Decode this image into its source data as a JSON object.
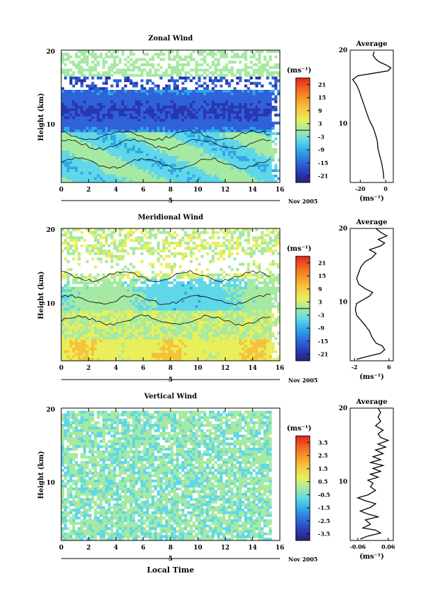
{
  "chart_data": [
    {
      "type": "heatmap",
      "title": "Zonal Wind",
      "ylabel": "Height (km)",
      "xlim": [
        0,
        16
      ],
      "ylim": [
        2,
        20
      ],
      "x_ticks": [
        "0",
        "2",
        "4",
        "6",
        "8",
        "10",
        "12",
        "14",
        "16"
      ],
      "y_ticks": [
        "20",
        "10"
      ],
      "date_axis": {
        "day": "5",
        "month_year": "Nov 2005"
      },
      "colorbar": {
        "unit": "(ms⁻¹)",
        "ticks": [
          "21",
          "15",
          "9",
          "3",
          "-3",
          "-9",
          "-15",
          "-21"
        ],
        "range": [
          -24,
          24
        ]
      },
      "profile": {
        "title": "Average",
        "xlabel": "(ms⁻¹)",
        "x_ticks": [
          "-20",
          "0"
        ],
        "xlim": [
          -28,
          6
        ],
        "y_ticks": [
          "20",
          "10"
        ],
        "points": [
          [
            -1.5,
            2.5
          ],
          [
            -2,
            3.5
          ],
          [
            -3,
            4.5
          ],
          [
            -4.5,
            5.5
          ],
          [
            -6,
            6.5
          ],
          [
            -6.5,
            7.5
          ],
          [
            -8,
            8.5
          ],
          [
            -10,
            9.5
          ],
          [
            -13,
            10.5
          ],
          [
            -15,
            11.5
          ],
          [
            -17,
            12.5
          ],
          [
            -19,
            13.5
          ],
          [
            -21,
            14.5
          ],
          [
            -23,
            15.3
          ],
          [
            -26,
            16.0
          ],
          [
            -22,
            16.5
          ],
          [
            -8,
            16.9
          ],
          [
            2,
            17.2
          ],
          [
            4,
            17.6
          ],
          [
            0,
            18.0
          ],
          [
            -5,
            18.4
          ],
          [
            -8,
            18.8
          ],
          [
            -10,
            19.3
          ],
          [
            -9,
            19.8
          ]
        ]
      }
    },
    {
      "type": "heatmap",
      "title": "Meridional Wind",
      "ylabel": "Height (km)",
      "xlim": [
        0,
        16
      ],
      "ylim": [
        2,
        20
      ],
      "x_ticks": [
        "0",
        "2",
        "4",
        "6",
        "8",
        "10",
        "12",
        "14",
        "16"
      ],
      "y_ticks": [
        "20",
        "10"
      ],
      "date_axis": {
        "day": "5",
        "month_year": "Nov 2005"
      },
      "colorbar": {
        "unit": "(ms⁻¹)",
        "ticks": [
          "21",
          "15",
          "9",
          "3",
          "-3",
          "-9",
          "-15",
          "-21"
        ],
        "range": [
          -24,
          24
        ]
      },
      "profile": {
        "title": "Average",
        "xlabel": "(ms⁻¹)",
        "x_ticks": [
          "-2",
          "6"
        ],
        "xlim": [
          -3,
          7
        ],
        "y_ticks": [
          "20",
          "10"
        ],
        "points": [
          [
            -1.5,
            2.2
          ],
          [
            1,
            2.6
          ],
          [
            4,
            3.0
          ],
          [
            5,
            3.5
          ],
          [
            4.5,
            4.0
          ],
          [
            3,
            4.4
          ],
          [
            2.5,
            4.8
          ],
          [
            2,
            5.3
          ],
          [
            1.5,
            6.0
          ],
          [
            0.5,
            6.8
          ],
          [
            -0.5,
            7.5
          ],
          [
            -1.5,
            8.2
          ],
          [
            -1.8,
            9.0
          ],
          [
            -1.5,
            9.8
          ],
          [
            0,
            10.3
          ],
          [
            1.5,
            10.8
          ],
          [
            2.2,
            11.3
          ],
          [
            0.5,
            11.8
          ],
          [
            -1,
            12.4
          ],
          [
            -1.5,
            13.2
          ],
          [
            -1,
            14.0
          ],
          [
            -0.5,
            14.8
          ],
          [
            0.5,
            15.5
          ],
          [
            2,
            16.0
          ],
          [
            3,
            16.6
          ],
          [
            1.5,
            17.1
          ],
          [
            4,
            17.6
          ],
          [
            5,
            18.0
          ],
          [
            3.5,
            18.5
          ],
          [
            5.5,
            19.0
          ],
          [
            4,
            19.5
          ],
          [
            3,
            20.0
          ]
        ]
      }
    },
    {
      "type": "heatmap",
      "title": "Vertical Wind",
      "ylabel": "Height (km)",
      "xlabel": "Local Time",
      "xlim": [
        0,
        16
      ],
      "ylim": [
        2,
        20
      ],
      "x_ticks": [
        "0",
        "2",
        "4",
        "6",
        "8",
        "10",
        "12",
        "14",
        "16"
      ],
      "y_ticks": [
        "20",
        "10"
      ],
      "date_axis": {
        "day": "5",
        "month_year": "Nov 2005"
      },
      "colorbar": {
        "unit": "(ms⁻¹)",
        "ticks": [
          "3.5",
          "2.5",
          "1.5",
          "0.5",
          "-0.5",
          "-1.5",
          "-2.5",
          "-3.5"
        ],
        "range": [
          -4,
          4
        ]
      },
      "profile": {
        "title": "Average",
        "xlabel": "(ms⁻¹)",
        "x_ticks": [
          "-0.06",
          "0.06"
        ],
        "xlim": [
          -0.09,
          0.08
        ],
        "y_ticks": [
          "20",
          "10"
        ],
        "points": [
          [
            -0.05,
            2.2
          ],
          [
            -0.02,
            2.6
          ],
          [
            0.03,
            3.0
          ],
          [
            0.01,
            3.4
          ],
          [
            -0.04,
            3.7
          ],
          [
            -0.01,
            4.2
          ],
          [
            -0.03,
            4.8
          ],
          [
            0.02,
            5.2
          ],
          [
            -0.02,
            5.6
          ],
          [
            -0.05,
            6.0
          ],
          [
            -0.01,
            6.5
          ],
          [
            0.01,
            7.0
          ],
          [
            -0.03,
            7.4
          ],
          [
            -0.06,
            7.8
          ],
          [
            -0.02,
            8.2
          ],
          [
            0.01,
            8.8
          ],
          [
            -0.01,
            9.3
          ],
          [
            0.0,
            9.8
          ],
          [
            -0.02,
            10.2
          ],
          [
            0.02,
            10.6
          ],
          [
            -0.01,
            11.0
          ],
          [
            0.03,
            11.4
          ],
          [
            0.0,
            11.8
          ],
          [
            0.04,
            12.2
          ],
          [
            -0.01,
            12.6
          ],
          [
            0.03,
            13.0
          ],
          [
            0.0,
            13.4
          ],
          [
            0.04,
            13.8
          ],
          [
            0.01,
            14.3
          ],
          [
            0.05,
            14.7
          ],
          [
            0.02,
            15.1
          ],
          [
            0.06,
            15.6
          ],
          [
            0.03,
            16.0
          ],
          [
            0.02,
            16.5
          ],
          [
            0.04,
            17.0
          ],
          [
            0.01,
            17.6
          ],
          [
            0.03,
            18.2
          ],
          [
            0.02,
            18.8
          ],
          [
            0.03,
            19.4
          ],
          [
            0.02,
            20.0
          ]
        ]
      }
    }
  ]
}
